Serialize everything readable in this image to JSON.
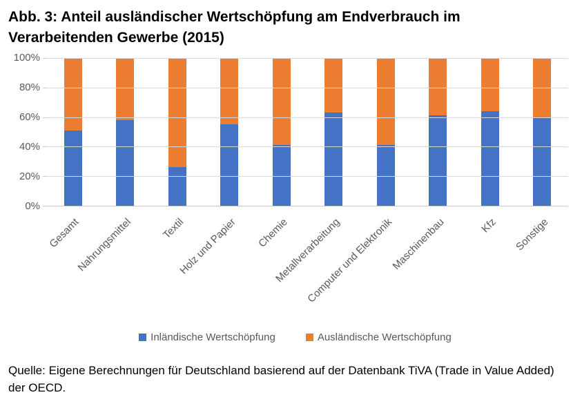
{
  "title": "Abb. 3: Anteil ausländischer Wertschöpfung am Endverbrauch im Verarbeitenden Gewerbe (2015)",
  "source": "Quelle: Eigene Berechnungen für Deutschland basierend auf der Datenbank TiVA (Trade in Value Added) der OECD.",
  "colors": {
    "domestic_blue": "#4472C4",
    "foreign_orange": "#ED7D31",
    "gridline": "#D9D9D9",
    "axis_text": "#595959",
    "title_text": "#000000"
  },
  "chart_data": {
    "type": "bar",
    "stacked": true,
    "title": "Abb. 3: Anteil ausländischer Wertschöpfung am Endverbrauch im Verarbeitenden Gewerbe (2015)",
    "categories": [
      "Gesamt",
      "Nahrungsmittel",
      "Textil",
      "Holz und Papier",
      "Chemie",
      "Metallverarbeitung",
      "Computer und Elektronik",
      "Maschinenbau",
      "Kfz",
      "Sonstige"
    ],
    "series": [
      {
        "name": "Inländische Wertschöpfung",
        "color": "#4472C4",
        "values": [
          51,
          58,
          26,
          55,
          41,
          63,
          41,
          61,
          64,
          60
        ]
      },
      {
        "name": "Ausländische Wertschöpfung",
        "color": "#ED7D31",
        "values": [
          49,
          42,
          74,
          45,
          59,
          37,
          59,
          39,
          36,
          40
        ]
      }
    ],
    "xlabel": "",
    "ylabel": "",
    "ylim": [
      0,
      100
    ],
    "yticks": [
      0,
      20,
      40,
      60,
      80,
      100
    ],
    "ytick_labels": [
      "0%",
      "20%",
      "40%",
      "60%",
      "80%",
      "100%"
    ],
    "grid": true,
    "legend_position": "bottom",
    "x_label_rotation_deg": 45
  }
}
